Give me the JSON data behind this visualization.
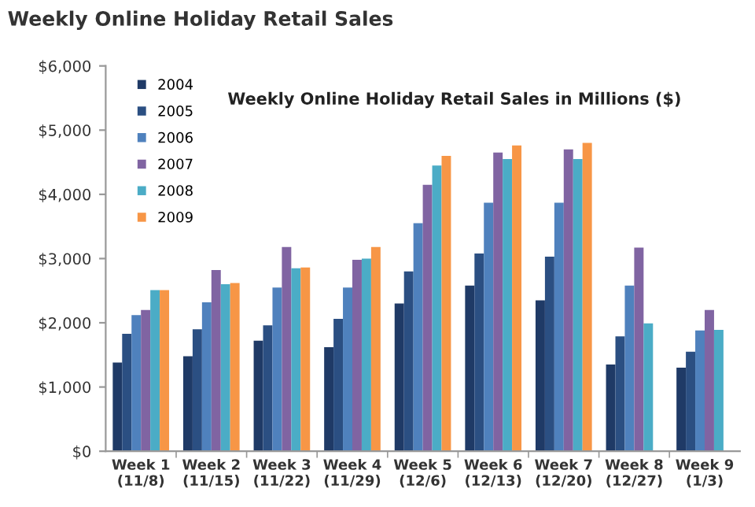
{
  "chart_data": {
    "type": "bar",
    "title": "Weekly Online Holiday Retail Sales",
    "subtitle": "Weekly Online Holiday Retail Sales in Millions ($)",
    "categories": [
      "Week 1\n(11/8)",
      "Week 2\n(11/15)",
      "Week 3\n(11/22)",
      "Week 4\n(11/29)",
      "Week 5\n(12/6)",
      "Week 6\n(12/13)",
      "Week 7\n(12/20)",
      "Week 8\n(12/27)",
      "Week 9\n(1/3)"
    ],
    "series": [
      {
        "name": "2004",
        "color": "#1f3a66",
        "values": [
          1380,
          1480,
          1720,
          1620,
          2300,
          2580,
          2350,
          1350,
          1300
        ]
      },
      {
        "name": "2005",
        "color": "#2b4f82",
        "values": [
          1830,
          1900,
          1960,
          2060,
          2800,
          3080,
          3030,
          1790,
          1550
        ]
      },
      {
        "name": "2006",
        "color": "#4f81bd",
        "values": [
          2120,
          2320,
          2550,
          2550,
          3550,
          3870,
          3870,
          2580,
          1880
        ]
      },
      {
        "name": "2007",
        "color": "#8064a2",
        "values": [
          2200,
          2820,
          3180,
          2980,
          4150,
          4650,
          4700,
          3170,
          2200
        ]
      },
      {
        "name": "2008",
        "color": "#4bacc6",
        "values": [
          2510,
          2600,
          2850,
          3000,
          4450,
          4550,
          4550,
          1990,
          1890
        ]
      },
      {
        "name": "2009",
        "color": "#f79646",
        "values": [
          2510,
          2620,
          2860,
          3180,
          4600,
          4760,
          4800,
          null,
          null
        ]
      }
    ],
    "ylim": [
      0,
      6000
    ],
    "yticks": [
      {
        "value": 0,
        "label": "$0"
      },
      {
        "value": 1000,
        "label": "$1,000"
      },
      {
        "value": 2000,
        "label": "$2,000"
      },
      {
        "value": 3000,
        "label": "$3,000"
      },
      {
        "value": 4000,
        "label": "$4,000"
      },
      {
        "value": 5000,
        "label": "$5,000"
      },
      {
        "value": 6000,
        "label": "$6,000"
      }
    ],
    "grid": false,
    "legend": "top left"
  }
}
